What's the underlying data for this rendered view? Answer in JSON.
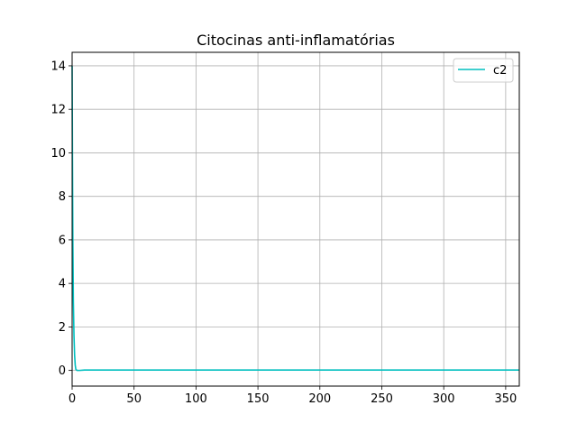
{
  "chart_data": {
    "type": "line",
    "title": "Citocinas anti-inflamatórias",
    "xlabel": "",
    "ylabel": "",
    "xlim": [
      0,
      361
    ],
    "ylim": [
      -0.72,
      14.62
    ],
    "x_ticks": [
      0,
      50,
      100,
      150,
      200,
      250,
      300,
      350
    ],
    "y_ticks": [
      0,
      2,
      4,
      6,
      8,
      10,
      12,
      14
    ],
    "grid": true,
    "legend_position": "top-right",
    "series": [
      {
        "name": "c2",
        "color": "#00bfbf",
        "x": [
          0,
          0.3,
          0.6,
          1,
          1.5,
          2,
          2.5,
          3,
          4,
          6,
          10,
          20,
          50,
          100,
          200,
          300,
          361
        ],
        "y": [
          14.0,
          9.5,
          6.0,
          3.2,
          1.6,
          0.7,
          0.25,
          0.05,
          0.0,
          0.0,
          0.02,
          0.02,
          0.02,
          0.02,
          0.02,
          0.02,
          0.02
        ]
      }
    ]
  }
}
